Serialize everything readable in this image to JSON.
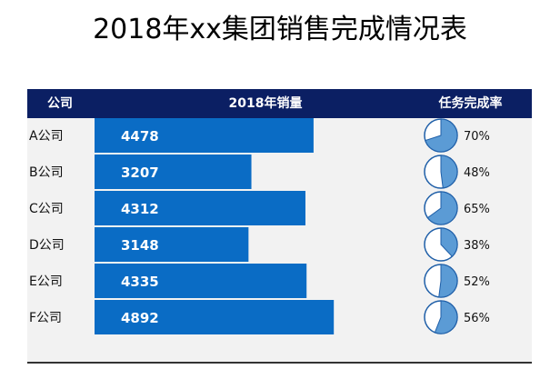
{
  "title": "2018年xx集团销售完成情况表",
  "header": {
    "company": "公司",
    "sales": "2018年销量",
    "rate": "任务完成率"
  },
  "colors": {
    "header_bg": "#0B1F63",
    "bar": "#0A6CC5",
    "pie_fill": "#5B9BD5",
    "pie_outline": "#1F5FA8",
    "row_bg": "#F2F2F2"
  },
  "chart_data": {
    "type": "bar",
    "orientation": "horizontal",
    "categories": [
      "A公司",
      "B公司",
      "C公司",
      "D公司",
      "E公司",
      "F公司"
    ],
    "series": [
      {
        "values": [
          4478,
          3207,
          4312,
          3148,
          4335,
          4892
        ]
      }
    ],
    "completion_rate": {
      "type": "pie",
      "values": [
        0.7,
        0.48,
        0.65,
        0.38,
        0.52,
        0.56
      ],
      "labels": [
        "70%",
        "48%",
        "65%",
        "38%",
        "52%",
        "56%"
      ]
    }
  }
}
